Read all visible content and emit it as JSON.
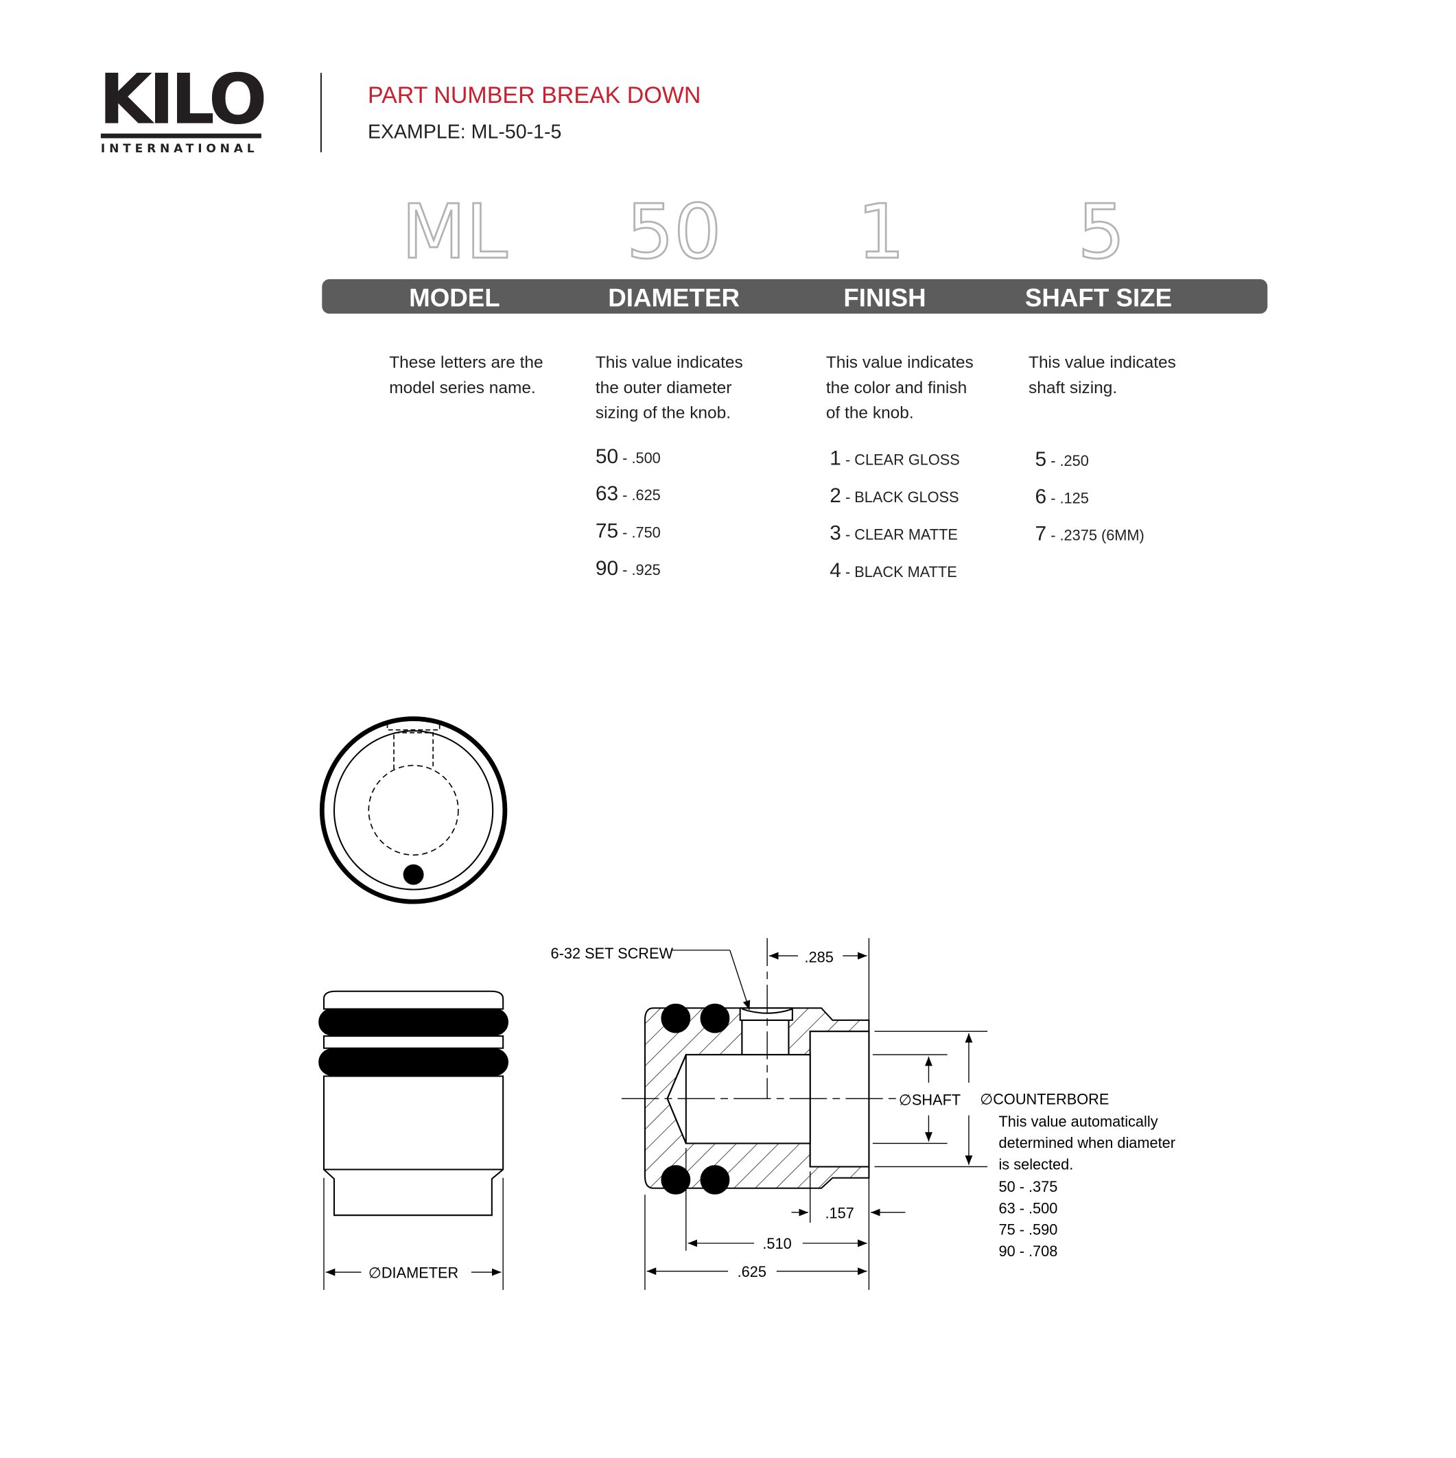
{
  "logo": {
    "text": "KILO",
    "subtext": "INTERNATIONAL"
  },
  "header": {
    "title": "PART NUMBER BREAK DOWN",
    "example": "EXAMPLE: ML-50-1-5",
    "title_color": "#c8202f"
  },
  "bar_color": "#5c5c5c",
  "columns": [
    {
      "code": "ML",
      "label": "MODEL",
      "desc": [
        "These letters are the",
        "model series name."
      ],
      "options": []
    },
    {
      "code": "50",
      "label": "DIAMETER",
      "desc": [
        "This value indicates",
        "the outer diameter",
        "sizing of the knob."
      ],
      "options": [
        {
          "code": "50",
          "value": ".500"
        },
        {
          "code": "63",
          "value": ".625"
        },
        {
          "code": "75",
          "value": ".750"
        },
        {
          "code": "90",
          "value": ".925"
        }
      ]
    },
    {
      "code": "1",
      "label": "FINISH",
      "desc": [
        "This value indicates",
        "the color and finish",
        "of the knob."
      ],
      "options": [
        {
          "code": "1",
          "value": "CLEAR GLOSS"
        },
        {
          "code": "2",
          "value": "BLACK GLOSS"
        },
        {
          "code": "3",
          "value": "CLEAR MATTE"
        },
        {
          "code": "4",
          "value": "BLACK MATTE"
        }
      ]
    },
    {
      "code": "5",
      "label": "SHAFT SIZE",
      "desc": [
        "This value indicates",
        "shaft sizing."
      ],
      "options": [
        {
          "code": "5",
          "value": ".250"
        },
        {
          "code": "6",
          "value": ".125"
        },
        {
          "code": "7",
          "value": ".2375 (6MM)"
        }
      ]
    }
  ],
  "drawing": {
    "diameter_label": "∅DIAMETER",
    "set_screw": "6-32 SET SCREW",
    "dim_285": ".285",
    "dim_157": ".157",
    "dim_510": ".510",
    "dim_625": ".625",
    "shaft_label": "∅SHAFT",
    "counterbore_label": "∅COUNTERBORE",
    "counterbore_note": [
      "This value automatically",
      "determined when diameter",
      "is selected."
    ],
    "counterbore_values": [
      "50 - .375",
      "63 - .500",
      "75 - .590",
      "90 - .708"
    ]
  }
}
